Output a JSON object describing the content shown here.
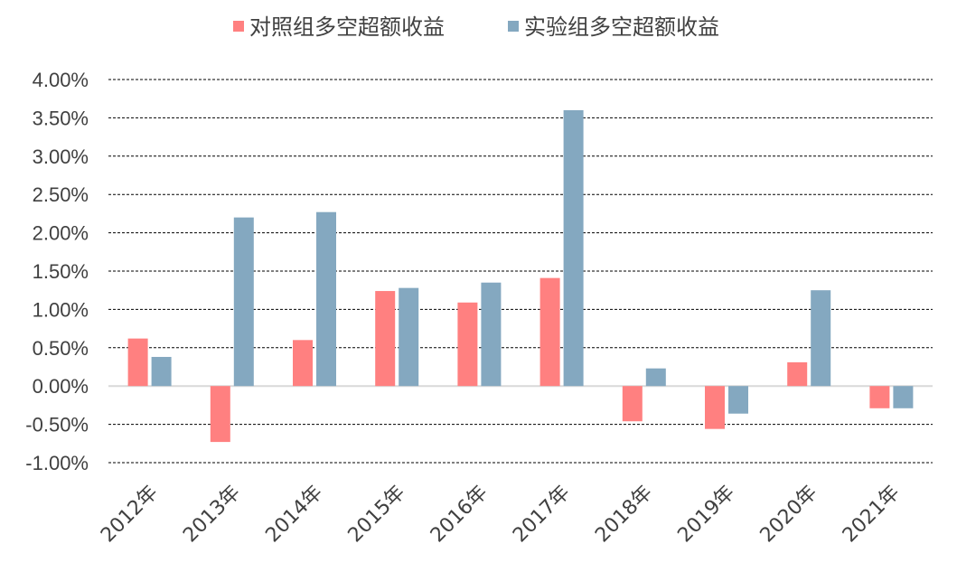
{
  "chart_data": {
    "type": "bar",
    "categories": [
      "2012年",
      "2013年",
      "2014年",
      "2015年",
      "2016年",
      "2017年",
      "2018年",
      "2019年",
      "2020年",
      "2021年"
    ],
    "series": [
      {
        "name": "对照组多空超额收益",
        "color": "#ff8080",
        "values": [
          0.62,
          -0.73,
          0.6,
          1.24,
          1.09,
          1.41,
          -0.46,
          -0.56,
          0.31,
          -0.29
        ]
      },
      {
        "name": "实验组多空超额收益",
        "color": "#84a8c0",
        "values": [
          0.38,
          2.2,
          2.27,
          1.28,
          1.35,
          3.6,
          0.23,
          -0.36,
          1.25,
          -0.29
        ]
      }
    ],
    "ylim": [
      -1.0,
      4.0
    ],
    "yticks": [
      -1.0,
      -0.5,
      0.0,
      0.5,
      1.0,
      1.5,
      2.0,
      2.5,
      3.0,
      3.5,
      4.0
    ],
    "ytick_labels": [
      "-1.00%",
      "-0.50%",
      "0.00%",
      "0.50%",
      "1.00%",
      "1.50%",
      "2.00%",
      "2.50%",
      "3.00%",
      "3.50%",
      "4.00%"
    ],
    "grid": true,
    "legend_position": "top",
    "title": "",
    "xlabel": "",
    "ylabel": ""
  }
}
